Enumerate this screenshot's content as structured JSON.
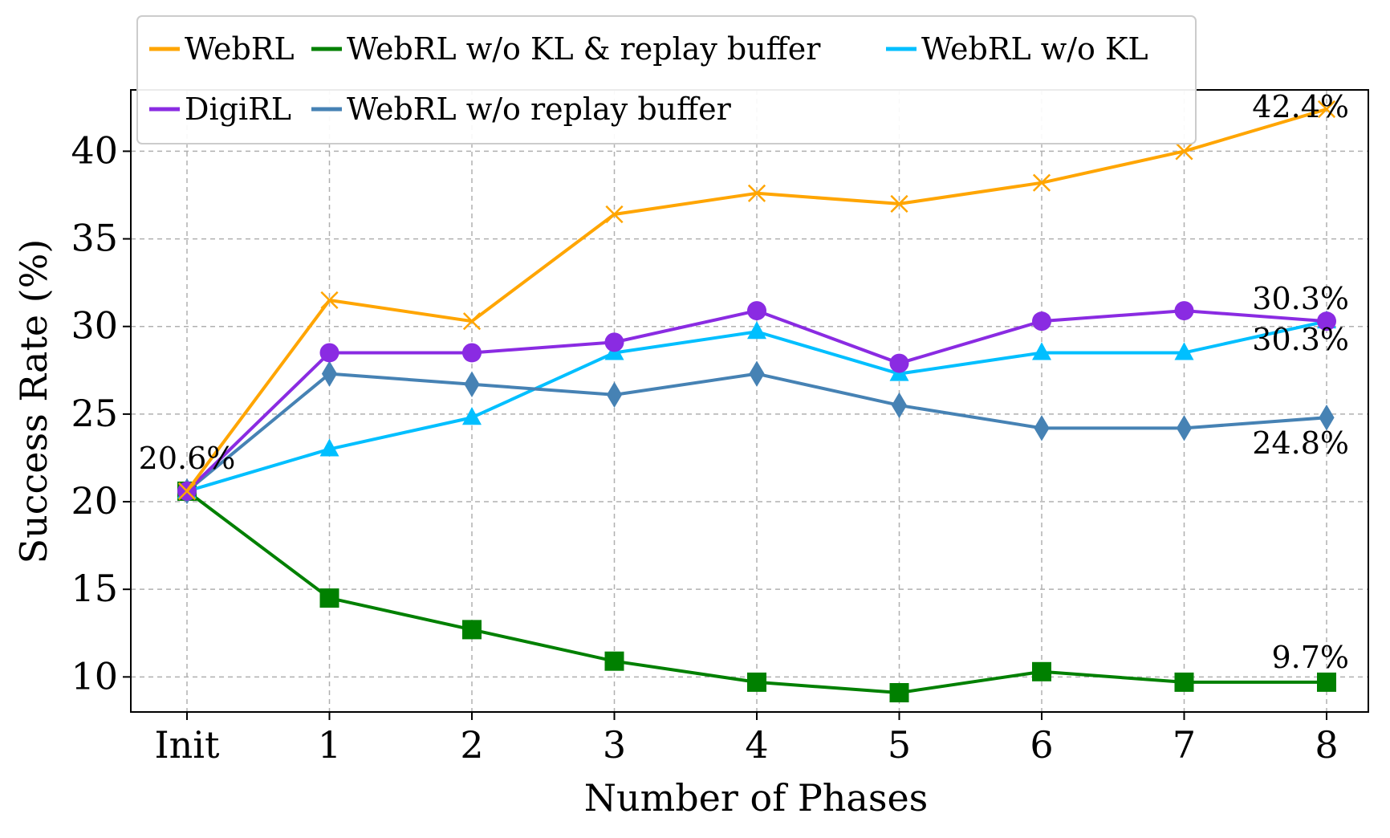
{
  "chart_data": {
    "type": "line",
    "title": "",
    "xlabel": "Number of Phases",
    "ylabel": "Success Rate (%)",
    "categories": [
      "Init",
      "1",
      "2",
      "3",
      "4",
      "5",
      "6",
      "7",
      "8"
    ],
    "ylim": [
      8,
      43.5
    ],
    "yticks": [
      10,
      15,
      20,
      25,
      30,
      35,
      40
    ],
    "grid": true,
    "legend_position": "top-left",
    "series": [
      {
        "name": "WebRL",
        "color": "#FFA500",
        "marker": "x",
        "values": [
          20.6,
          31.5,
          30.3,
          36.4,
          37.6,
          37.0,
          38.2,
          40.0,
          42.4
        ]
      },
      {
        "name": "WebRL w/o KL & replay buffer",
        "color": "#008000",
        "marker": "square",
        "values": [
          20.6,
          14.5,
          12.7,
          10.9,
          9.7,
          9.1,
          10.3,
          9.7,
          9.7
        ]
      },
      {
        "name": "WebRL w/o KL",
        "color": "#00BFFF",
        "marker": "triangle",
        "values": [
          20.6,
          23.0,
          24.8,
          28.5,
          29.7,
          27.3,
          28.5,
          28.5,
          30.3
        ]
      },
      {
        "name": "DigiRL",
        "color": "#8A2BE2",
        "marker": "circle",
        "values": [
          20.6,
          28.5,
          28.5,
          29.1,
          30.9,
          27.9,
          30.3,
          30.9,
          30.3
        ]
      },
      {
        "name": "WebRL w/o replay buffer",
        "color": "#4682B4",
        "marker": "diamond",
        "values": [
          20.6,
          27.3,
          26.7,
          26.1,
          27.3,
          25.5,
          24.2,
          24.2,
          24.8
        ]
      }
    ],
    "annotations": [
      {
        "text": "20.6%",
        "category": "Init",
        "y": 20.6
      },
      {
        "text": "42.4%",
        "category": "8",
        "y": 42.4
      },
      {
        "text": "30.3%",
        "category": "8",
        "y": 30.3
      },
      {
        "text": "30.3%",
        "category": "8",
        "y": 30.3
      },
      {
        "text": "24.8%",
        "category": "8",
        "y": 24.8
      },
      {
        "text": "9.7%",
        "category": "8",
        "y": 9.7
      }
    ]
  }
}
